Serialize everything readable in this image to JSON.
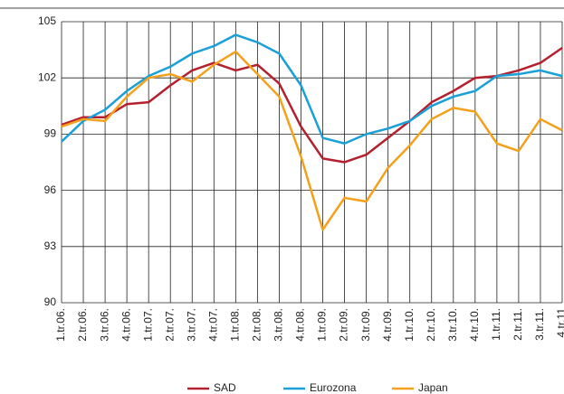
{
  "chart_data": {
    "type": "line",
    "categories": [
      "1.tr.06.",
      "2.tr.06.",
      "3.tr.06.",
      "4.tr.06.",
      "1.tr.07.",
      "2.tr.07.",
      "3.tr.07.",
      "4.tr.07.",
      "1.tr.08.",
      "2.tr.08.",
      "3.tr.08.",
      "4.tr.08.",
      "1.tr.09.",
      "2.tr.09.",
      "3.tr.09.",
      "4.tr.09.",
      "1.tr.10.",
      "2.tr.10.",
      "3.tr.10.",
      "4.tr.10.",
      "1.tr.11.",
      "2.tr.11.",
      "3.tr.11.",
      "4.tr.11"
    ],
    "series": [
      {
        "name": "SAD",
        "color": "#b5202e",
        "values": [
          99.5,
          99.9,
          99.9,
          100.6,
          100.7,
          101.6,
          102.4,
          102.8,
          102.4,
          102.7,
          101.7,
          99.4,
          97.7,
          97.5,
          97.9,
          98.8,
          99.7,
          100.7,
          101.3,
          102.0,
          102.1,
          102.4,
          102.8,
          103.6
        ]
      },
      {
        "name": "Eurozona",
        "color": "#1aa0d8",
        "values": [
          98.6,
          99.7,
          100.3,
          101.3,
          102.1,
          102.6,
          103.3,
          103.7,
          104.3,
          103.9,
          103.3,
          101.6,
          98.8,
          98.5,
          99.0,
          99.3,
          99.7,
          100.5,
          101.0,
          101.3,
          102.1,
          102.2,
          102.4,
          102.1
        ]
      },
      {
        "name": "Japan",
        "color": "#f5a01a",
        "values": [
          99.4,
          99.8,
          99.7,
          101.0,
          102.0,
          102.2,
          101.8,
          102.7,
          103.4,
          102.2,
          101.0,
          97.8,
          93.9,
          95.6,
          95.4,
          97.2,
          98.4,
          99.8,
          100.4,
          100.2,
          98.5,
          98.1,
          99.8,
          99.2
        ]
      }
    ],
    "ylim": [
      90,
      105
    ],
    "yticks": [
      90,
      93,
      96,
      99,
      102,
      105
    ],
    "grid": true
  }
}
